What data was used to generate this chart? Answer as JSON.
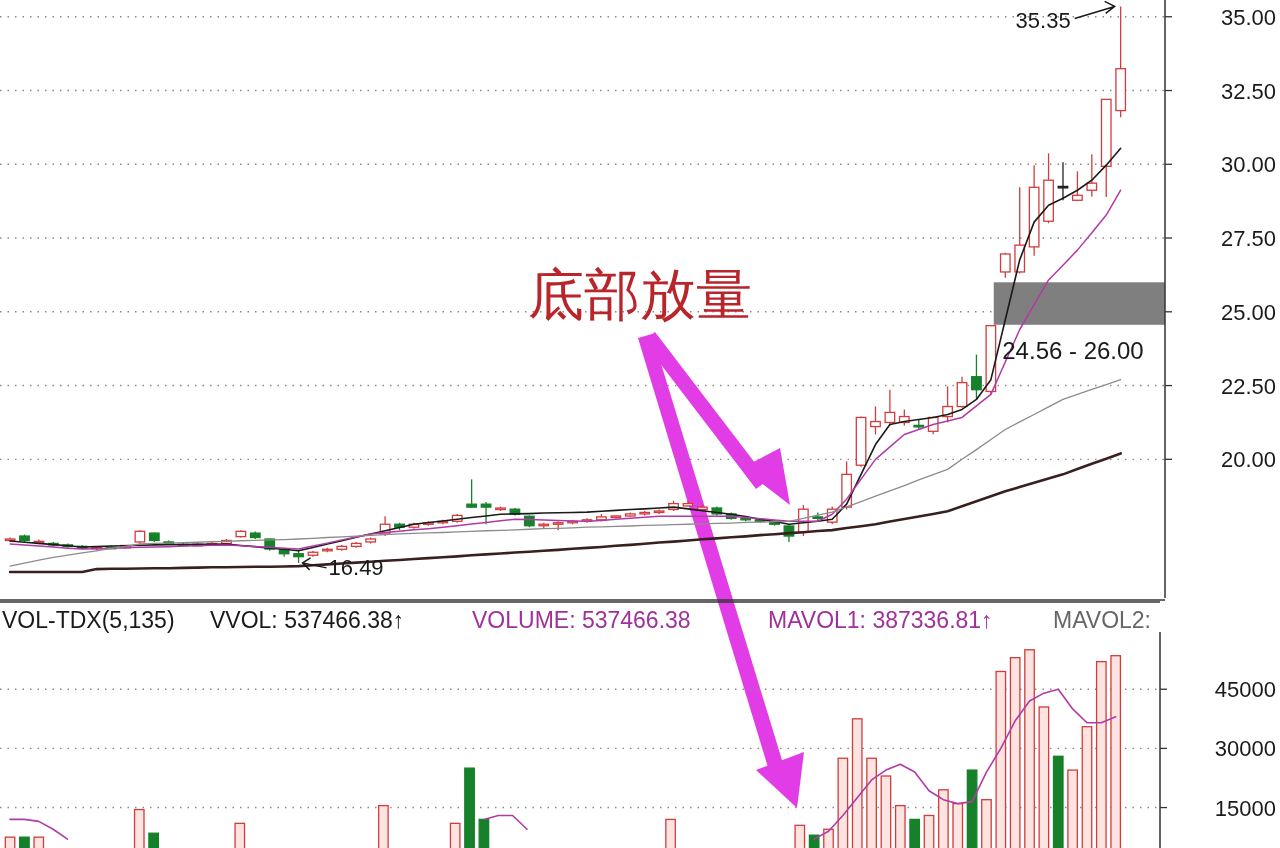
{
  "chart_data": [
    {
      "type": "candlestick",
      "categories": [
        null,
        null,
        null,
        null,
        null,
        null,
        null,
        null,
        null,
        null,
        null,
        null,
        null,
        null,
        null,
        null,
        null,
        null,
        null,
        null,
        null,
        null,
        null,
        null,
        null,
        null,
        null,
        null,
        null,
        null,
        null,
        null,
        null,
        null,
        null,
        null,
        null,
        null,
        null,
        null,
        null,
        null,
        null,
        null,
        null,
        null,
        null,
        null,
        null,
        null,
        null,
        null,
        null,
        null,
        null,
        null,
        null,
        null,
        null,
        null,
        null,
        null,
        null,
        null,
        null,
        null,
        null,
        null,
        null,
        null,
        null,
        null,
        null,
        null,
        null,
        null,
        null,
        null
      ],
      "ohlc": [
        [
          17.28,
          17.35,
          17.2,
          17.3
        ],
        [
          17.4,
          17.45,
          17.2,
          17.25
        ],
        [
          17.2,
          17.28,
          17.12,
          17.22
        ],
        [
          17.15,
          17.2,
          17.05,
          17.1
        ],
        [
          17.1,
          17.15,
          17.0,
          17.05
        ],
        [
          17.05,
          17.1,
          16.95,
          16.98
        ],
        [
          16.98,
          17.05,
          16.92,
          17.02
        ],
        [
          17.02,
          17.08,
          16.95,
          17.0
        ],
        [
          17.0,
          17.1,
          16.98,
          17.08
        ],
        [
          17.2,
          17.6,
          17.15,
          17.56
        ],
        [
          17.5,
          17.52,
          17.2,
          17.25
        ],
        [
          17.2,
          17.25,
          17.1,
          17.15
        ],
        [
          17.12,
          17.18,
          17.05,
          17.1
        ],
        [
          17.1,
          17.15,
          17.05,
          17.12
        ],
        [
          17.12,
          17.2,
          17.08,
          17.15
        ],
        [
          17.15,
          17.3,
          17.1,
          17.25
        ],
        [
          17.38,
          17.6,
          17.35,
          17.56
        ],
        [
          17.5,
          17.55,
          17.3,
          17.35
        ],
        [
          17.3,
          17.32,
          16.9,
          16.96
        ],
        [
          16.95,
          17.0,
          16.7,
          16.8
        ],
        [
          16.8,
          16.9,
          16.49,
          16.7
        ],
        [
          16.75,
          16.9,
          16.7,
          16.85
        ],
        [
          16.9,
          17.0,
          16.85,
          16.95
        ],
        [
          16.95,
          17.1,
          16.9,
          17.05
        ],
        [
          17.05,
          17.2,
          17.0,
          17.15
        ],
        [
          17.2,
          17.35,
          17.15,
          17.3
        ],
        [
          17.47,
          18.07,
          17.4,
          17.8
        ],
        [
          17.8,
          17.85,
          17.6,
          17.7
        ],
        [
          17.7,
          17.85,
          17.65,
          17.8
        ],
        [
          17.8,
          17.9,
          17.75,
          17.85
        ],
        [
          17.85,
          17.95,
          17.8,
          17.9
        ],
        [
          17.9,
          18.15,
          17.85,
          18.1
        ],
        [
          18.48,
          19.32,
          18.35,
          18.38
        ],
        [
          18.48,
          18.55,
          17.8,
          18.38
        ],
        [
          18.3,
          18.4,
          18.25,
          18.35
        ],
        [
          18.31,
          18.35,
          18.1,
          18.14
        ],
        [
          18.07,
          18.1,
          17.7,
          17.75
        ],
        [
          17.75,
          17.85,
          17.65,
          17.8
        ],
        [
          17.8,
          17.9,
          17.6,
          17.85
        ],
        [
          17.85,
          17.95,
          17.8,
          17.9
        ],
        [
          17.9,
          18.0,
          17.85,
          17.95
        ],
        [
          17.95,
          18.15,
          17.9,
          18.05
        ],
        [
          18.05,
          18.1,
          18.0,
          18.08
        ],
        [
          18.08,
          18.2,
          18.05,
          18.15
        ],
        [
          18.15,
          18.25,
          18.1,
          18.2
        ],
        [
          18.2,
          18.3,
          18.15,
          18.25
        ],
        [
          18.3,
          18.6,
          18.25,
          18.5
        ],
        [
          18.42,
          18.6,
          18.4,
          18.5
        ],
        [
          18.3,
          18.45,
          18.25,
          18.38
        ],
        [
          18.35,
          18.4,
          18.1,
          18.15
        ],
        [
          18.15,
          18.2,
          17.95,
          18.0
        ],
        [
          18.0,
          18.05,
          17.9,
          17.95
        ],
        [
          17.95,
          18.0,
          17.85,
          17.9
        ],
        [
          17.9,
          17.95,
          17.75,
          17.8
        ],
        [
          17.74,
          17.8,
          17.2,
          17.4
        ],
        [
          17.53,
          18.45,
          17.4,
          18.31
        ],
        [
          18.05,
          18.2,
          17.9,
          18.0
        ],
        [
          17.87,
          18.4,
          17.8,
          18.31
        ],
        [
          18.38,
          19.93,
          18.3,
          19.49
        ],
        [
          19.8,
          21.45,
          19.75,
          21.42
        ],
        [
          21.11,
          21.79,
          20.84,
          21.28
        ],
        [
          21.25,
          22.36,
          21.15,
          21.59
        ],
        [
          21.25,
          21.69,
          21.15,
          21.45
        ],
        [
          21.15,
          21.35,
          21.01,
          21.11
        ],
        [
          20.95,
          21.45,
          20.85,
          21.42
        ],
        [
          21.45,
          22.47,
          21.25,
          21.79
        ],
        [
          21.79,
          22.8,
          21.75,
          22.6
        ],
        [
          22.8,
          23.55,
          22.03,
          22.36
        ],
        [
          22.3,
          24.53,
          22.2,
          24.53
        ],
        [
          26.35,
          27.0,
          26.15,
          26.96
        ],
        [
          26.35,
          29.22,
          26.3,
          27.26
        ],
        [
          27.2,
          29.97,
          26.9,
          29.22
        ],
        [
          28.07,
          30.37,
          28.0,
          29.46
        ],
        [
          29.25,
          30.07,
          28.78,
          29.2
        ],
        [
          28.78,
          29.76,
          28.75,
          28.95
        ],
        [
          29.12,
          30.34,
          28.9,
          29.36
        ],
        [
          29.93,
          32.2,
          28.89,
          32.2
        ],
        [
          31.82,
          35.35,
          31.59,
          33.24
        ]
      ],
      "colors": [
        "#d23c3c",
        "#17802a",
        "#d23c3c",
        "#17802a",
        "#17802a",
        "#17802a",
        "#d23c3c",
        "#17802a",
        "#d23c3c",
        "#d23c3c",
        "#17802a",
        "#17802a",
        "#17802a",
        "#d23c3c",
        "#d23c3c",
        "#d23c3c",
        "#d23c3c",
        "#17802a",
        "#17802a",
        "#17802a",
        "#17802a",
        "#d23c3c",
        "#d23c3c",
        "#d23c3c",
        "#d23c3c",
        "#d23c3c",
        "#d23c3c",
        "#17802a",
        "#d23c3c",
        "#d23c3c",
        "#d23c3c",
        "#d23c3c",
        "#17802a",
        "#17802a",
        "#d23c3c",
        "#17802a",
        "#17802a",
        "#d23c3c",
        "#d23c3c",
        "#d23c3c",
        "#d23c3c",
        "#d23c3c",
        "#d23c3c",
        "#d23c3c",
        "#d23c3c",
        "#d23c3c",
        "#d23c3c",
        "#d23c3c",
        "#d23c3c",
        "#17802a",
        "#17802a",
        "#17802a",
        "#17802a",
        "#17802a",
        "#17802a",
        "#d23c3c",
        "#17802a",
        "#d23c3c",
        "#d23c3c",
        "#d23c3c",
        "#d23c3c",
        "#d23c3c",
        "#d23c3c",
        "#17802a",
        "#d23c3c",
        "#d23c3c",
        "#d23c3c",
        "#17802a",
        "#d23c3c",
        "#d23c3c",
        "#d23c3c",
        "#d23c3c",
        "#d23c3c",
        "#202020",
        "#d23c3c",
        "#d23c3c",
        "#d23c3c",
        "#d23c3c"
      ],
      "series": [
        {
          "type": "line",
          "color": "#1a1a1a",
          "values": [
            17.23,
            17.19,
            17.15,
            17.11,
            17.07,
            17.03,
            17.04,
            17.06,
            17.07,
            17.09,
            17.1,
            17.11,
            17.11,
            17.12,
            17.12,
            17.13,
            17.08,
            17.04,
            16.99,
            16.95,
            16.9,
            17.01,
            17.13,
            17.24,
            17.36,
            17.47,
            17.58,
            17.69,
            17.8,
            17.86,
            17.91,
            17.97,
            18.03,
            18.08,
            18.14,
            18.15,
            18.16,
            18.18,
            18.19,
            18.2,
            18.21,
            18.24,
            18.27,
            18.3,
            18.32,
            18.35,
            18.38,
            18.32,
            18.26,
            18.2,
            18.14,
            18.06,
            17.97,
            17.89,
            17.8,
            17.85,
            17.9,
            17.97,
            18.48,
            19.49,
            20.5,
            21.18,
            21.28,
            21.35,
            21.42,
            21.52,
            21.69,
            22.03,
            22.7,
            24.73,
            26.76,
            28.04,
            28.61,
            28.85,
            29.12,
            29.46,
            29.97,
            30.54
          ]
        },
        {
          "type": "line",
          "color": "#b23aa6",
          "values": [
            17.13,
            17.1,
            17.06,
            17.03,
            16.99,
            16.96,
            16.97,
            16.99,
            17.0,
            17.02,
            17.03,
            17.04,
            17.06,
            17.07,
            17.09,
            17.1,
            17.07,
            17.04,
            17.02,
            16.99,
            16.96,
            17.06,
            17.16,
            17.27,
            17.37,
            17.47,
            17.52,
            17.56,
            17.61,
            17.65,
            17.7,
            17.75,
            17.81,
            17.86,
            17.92,
            17.97,
            17.96,
            17.94,
            17.93,
            17.91,
            17.9,
            17.93,
            17.97,
            18.0,
            18.04,
            18.07,
            18.07,
            18.07,
            18.07,
            18.07,
            18.07,
            18.03,
            17.99,
            17.94,
            17.9,
            17.9,
            17.9,
            18.14,
            18.65,
            19.33,
            20.0,
            20.42,
            20.84,
            21.01,
            21.18,
            21.3,
            21.42,
            21.81,
            22.2,
            23.3,
            24.4,
            25.24,
            26.08,
            26.58,
            27.09,
            27.68,
            28.28,
            29.12
          ]
        },
        {
          "type": "line",
          "color": "#8c8c8c",
          "values": [
            16.38,
            16.48,
            16.58,
            16.68,
            16.75,
            16.83,
            16.9,
            16.98,
            17.05,
            17.13,
            17.15,
            17.16,
            17.18,
            17.19,
            17.21,
            17.22,
            17.24,
            17.25,
            17.27,
            17.28,
            17.3,
            17.32,
            17.35,
            17.37,
            17.4,
            17.42,
            17.45,
            17.47,
            17.49,
            17.51,
            17.52,
            17.54,
            17.56,
            17.58,
            17.59,
            17.61,
            17.63,
            17.65,
            17.66,
            17.68,
            17.7,
            17.71,
            17.73,
            17.74,
            17.76,
            17.77,
            17.79,
            17.8,
            17.81,
            17.83,
            17.84,
            17.86,
            17.87,
            17.89,
            17.9,
            18.0,
            18.11,
            18.21,
            18.39,
            18.57,
            18.75,
            18.93,
            19.11,
            19.3,
            19.48,
            19.66,
            20.0,
            20.33,
            20.67,
            21.01,
            21.27,
            21.52,
            21.78,
            22.03,
            22.2,
            22.37,
            22.53,
            22.7
          ]
        },
        {
          "type": "line",
          "color": "#3a1f1f",
          "values": [
            16.18,
            16.18,
            16.18,
            16.18,
            16.18,
            16.18,
            16.28,
            16.29,
            16.29,
            16.3,
            16.31,
            16.31,
            16.32,
            16.33,
            16.34,
            16.34,
            16.35,
            16.36,
            16.36,
            16.37,
            16.38,
            16.41,
            16.44,
            16.47,
            16.5,
            16.53,
            16.56,
            16.59,
            16.62,
            16.65,
            16.68,
            16.71,
            16.75,
            16.78,
            16.81,
            16.84,
            16.87,
            16.9,
            16.93,
            16.97,
            17.0,
            17.03,
            17.07,
            17.1,
            17.14,
            17.18,
            17.21,
            17.25,
            17.29,
            17.32,
            17.36,
            17.39,
            17.43,
            17.46,
            17.5,
            17.53,
            17.57,
            17.6,
            17.67,
            17.73,
            17.8,
            17.89,
            17.98,
            18.06,
            18.15,
            18.24,
            18.41,
            18.58,
            18.75,
            18.92,
            19.06,
            19.21,
            19.35,
            19.49,
            19.67,
            19.85,
            20.02,
            20.2
          ]
        }
      ],
      "ylim": [
        15.3,
        35.5
      ],
      "yticks": [
        {
          "value": 20,
          "label": "20.00"
        },
        {
          "value": 22.5,
          "label": "22.50"
        },
        {
          "value": 25,
          "label": "25.00"
        },
        {
          "value": 27.5,
          "label": "27.50"
        },
        {
          "value": 30,
          "label": "30.00"
        },
        {
          "value": 32.5,
          "label": "32.50"
        },
        {
          "value": 35,
          "label": "35.00"
        }
      ],
      "tick_labels": "y",
      "grid": "y",
      "bands": [
        {
          "axis": "y",
          "from": 24.56,
          "to": 26.0,
          "label": "24.56 - 26.00",
          "color": "#7f7f7f"
        }
      ],
      "annotations": [
        "底部放量",
        "35.35",
        "16.49"
      ]
    },
    {
      "type": "bar",
      "categories": [
        null,
        null,
        null,
        null,
        null,
        null,
        null,
        null,
        null,
        null,
        null,
        null,
        null,
        null,
        null,
        null,
        null,
        null,
        null,
        null,
        null,
        null,
        null,
        null,
        null,
        null,
        null,
        null,
        null,
        null,
        null,
        null,
        null,
        null,
        null,
        null,
        null,
        null,
        null,
        null,
        null,
        null,
        null,
        null,
        null,
        null,
        null,
        null,
        null,
        null,
        null,
        null,
        null,
        null,
        null,
        null,
        null,
        null,
        null,
        null,
        null,
        null,
        null,
        null,
        null,
        null,
        null,
        null,
        null,
        null,
        null,
        null,
        null,
        null,
        null,
        null,
        null,
        null
      ],
      "series": [
        {
          "type": "bar",
          "values": [
            7500,
            7500,
            7500,
            null,
            null,
            null,
            null,
            null,
            null,
            14500,
            8500,
            null,
            null,
            null,
            null,
            null,
            11000,
            null,
            null,
            null,
            null,
            null,
            null,
            null,
            null,
            null,
            15500,
            null,
            null,
            null,
            null,
            11000,
            25000,
            12000,
            null,
            null,
            null,
            null,
            null,
            null,
            null,
            null,
            null,
            null,
            null,
            null,
            12000,
            null,
            null,
            null,
            null,
            null,
            null,
            null,
            null,
            10500,
            8000,
            9500,
            27500,
            37500,
            27500,
            23000,
            15500,
            12000,
            13000,
            19500,
            16000,
            24500,
            17000,
            49500,
            53000,
            55000,
            40500,
            28000,
            24500,
            35500,
            52000,
            53500
          ],
          "colors": [
            "#d23c3c",
            "#17802a",
            "#d23c3c",
            null,
            null,
            null,
            null,
            null,
            null,
            "#d23c3c",
            "#17802a",
            null,
            null,
            null,
            null,
            null,
            "#d23c3c",
            null,
            null,
            null,
            null,
            null,
            null,
            null,
            null,
            null,
            "#d23c3c",
            null,
            null,
            null,
            null,
            "#d23c3c",
            "#17802a",
            "#17802a",
            null,
            null,
            null,
            null,
            null,
            null,
            null,
            null,
            null,
            null,
            null,
            null,
            "#d23c3c",
            null,
            null,
            null,
            null,
            null,
            null,
            null,
            null,
            "#d23c3c",
            "#17802a",
            "#d23c3c",
            "#d23c3c",
            "#d23c3c",
            "#d23c3c",
            "#d23c3c",
            "#d23c3c",
            "#17802a",
            "#d23c3c",
            "#d23c3c",
            "#d23c3c",
            "#17802a",
            "#d23c3c",
            "#d23c3c",
            "#d23c3c",
            "#d23c3c",
            "#d23c3c",
            "#17802a",
            "#d23c3c",
            "#d23c3c",
            "#d23c3c",
            "#d23c3c"
          ]
        },
        {
          "type": "line",
          "color": "#b23aa6",
          "values": [
            12000,
            12000,
            11500,
            9500,
            7000,
            null,
            null,
            null,
            null,
            null,
            null,
            null,
            null,
            null,
            null,
            null,
            null,
            null,
            null,
            null,
            null,
            null,
            null,
            null,
            null,
            null,
            null,
            null,
            null,
            null,
            null,
            null,
            null,
            12000,
            13000,
            13000,
            9500,
            null,
            null,
            null,
            null,
            null,
            null,
            null,
            null,
            null,
            null,
            null,
            null,
            null,
            null,
            null,
            null,
            null,
            null,
            null,
            7000,
            9000,
            13000,
            17500,
            22000,
            24500,
            26000,
            24000,
            19250,
            17000,
            16000,
            16500,
            24000,
            30000,
            37000,
            42000,
            44000,
            45000,
            40000,
            36500,
            36500,
            38000
          ]
        }
      ],
      "ylim": [
        4750,
        59000
      ],
      "yticks": [
        15000,
        30000,
        45000
      ],
      "tick_labels": "y",
      "grid": "y",
      "annotations": [
        "VOL-TDX(5,135)",
        "VVOL: 537466.38↑",
        "VOLUME: 537466.38",
        "MAVOL1: 387336.81↑",
        "MAVOL2:"
      ]
    }
  ]
}
